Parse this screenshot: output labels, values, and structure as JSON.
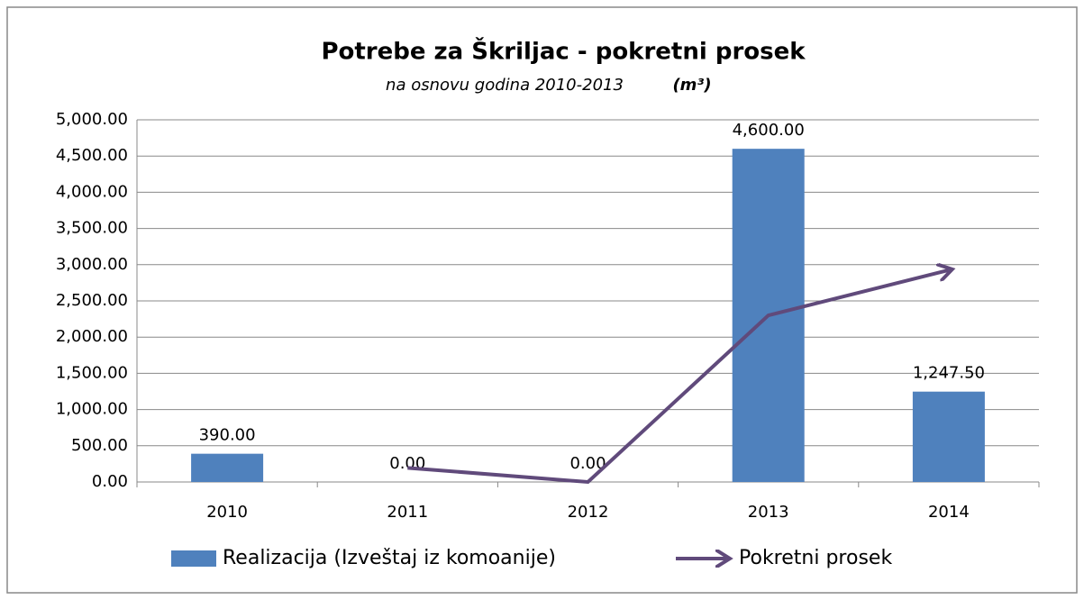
{
  "chart_data": {
    "type": "bar+line",
    "title": "Potrebe za Škriljac - pokretni prosek",
    "subtitle": "na osnovu godina 2010-2013",
    "unit": "(m³)",
    "categories": [
      "2010",
      "2011",
      "2012",
      "2013",
      "2014"
    ],
    "series": [
      {
        "name": "Realizacija (Izveštaj iz komoanije)",
        "type": "bar",
        "color": "#4f81bd",
        "values": [
          390,
          0,
          0,
          4600,
          1247.5
        ],
        "value_labels": [
          "390.00",
          "0.00",
          "0.00",
          "4,600.00",
          "1,247.50"
        ]
      },
      {
        "name": "Pokretni prosek",
        "type": "line",
        "color": "#604a7b",
        "values": [
          null,
          195,
          0,
          2300,
          2925
        ]
      }
    ],
    "ylim": [
      0,
      5000
    ],
    "yticks": [
      {
        "value": 0,
        "label": "0.00"
      },
      {
        "value": 500,
        "label": "500.00"
      },
      {
        "value": 1000,
        "label": "1,000.00"
      },
      {
        "value": 1500,
        "label": "1,500.00"
      },
      {
        "value": 2000,
        "label": "2,000.00"
      },
      {
        "value": 2500,
        "label": "2,500.00"
      },
      {
        "value": 3000,
        "label": "3,000.00"
      },
      {
        "value": 3500,
        "label": "3,500.00"
      },
      {
        "value": 4000,
        "label": "4,000.00"
      },
      {
        "value": 4500,
        "label": "4,500.00"
      },
      {
        "value": 5000,
        "label": "5,000.00"
      }
    ],
    "grid": true,
    "legend": "bottom"
  }
}
